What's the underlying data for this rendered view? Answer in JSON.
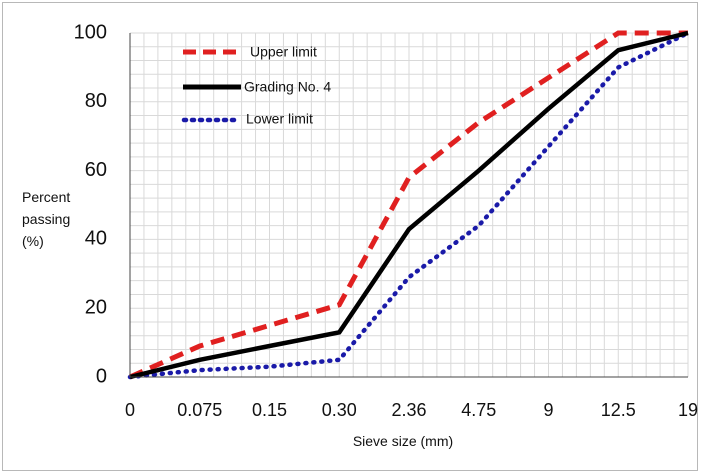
{
  "chart_data": {
    "type": "line",
    "categories": [
      "0",
      "0.075",
      "0.15",
      "0.30",
      "2.36",
      "4.75",
      "9",
      "12.5",
      "19"
    ],
    "xlabel": "Sieve size (mm)",
    "ylabel_lines": [
      "Percent",
      "passing",
      "(%)"
    ],
    "ylim": [
      0,
      100
    ],
    "yticks": [
      "0",
      "20",
      "40",
      "60",
      "80",
      "100"
    ],
    "grid": true,
    "legend_position": "top-left",
    "series": [
      {
        "name": "Upper limit",
        "color": "#e02020",
        "style": "dashed",
        "values": [
          0,
          9,
          15,
          21,
          58,
          74,
          87,
          100,
          100
        ]
      },
      {
        "name": "Grading No. 4",
        "color": "#000000",
        "style": "solid",
        "values": [
          0,
          5,
          9,
          13,
          43,
          60,
          78,
          95,
          100
        ]
      },
      {
        "name": "Lower limit",
        "color": "#1a1aa8",
        "style": "dotted",
        "values": [
          0,
          2,
          3,
          5,
          29,
          44,
          67,
          90,
          100
        ]
      }
    ]
  }
}
